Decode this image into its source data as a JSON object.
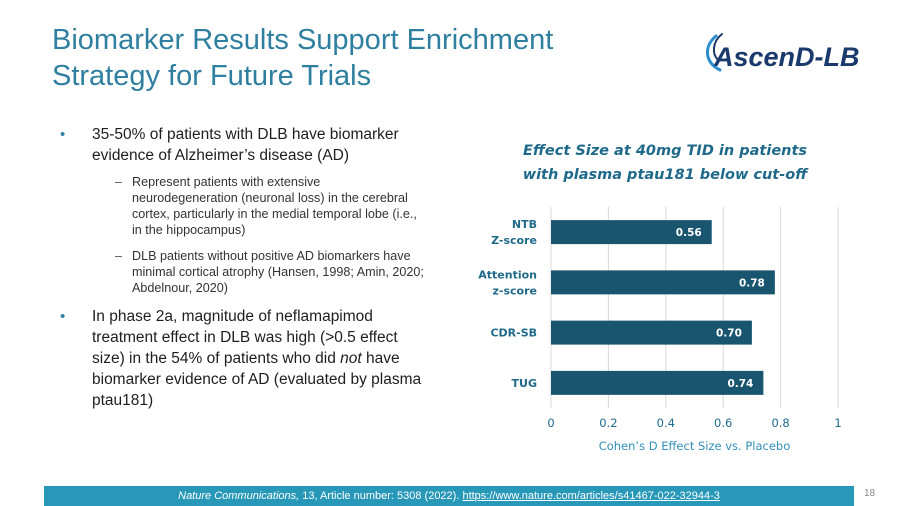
{
  "slide": {
    "title_line1": "Biomarker Results Support Enrichment",
    "title_line2": "Strategy for Future Trials",
    "logo_text": "AscenD-LB",
    "page_number": "18"
  },
  "bullets": [
    {
      "text": "35-50% of patients with DLB have biomarker evidence of Alzheimer’s disease (AD)",
      "subitems": [
        "Represent patients with extensive neurodegeneration (neuronal loss) in the cerebral cortex, particularly in the medial temporal lobe (i.e., in the hippocampus)",
        "DLB patients without positive AD biomarkers have minimal cortical atrophy (Hansen, 1998; Amin, 2020; Abdelnour, 2020)"
      ]
    },
    {
      "text_before": "In phase 2a, magnitude of neflamapimod treatment effect in DLB was high (>0.5 effect size) in the 54% of patients who did ",
      "text_italic": "not",
      "text_after": " have biomarker evidence of AD (evaluated by plasma ptau181)"
    }
  ],
  "chart_data": {
    "type": "bar",
    "orientation": "horizontal",
    "title": "Effect Size at 40mg TID in patients with plasma ptau181 below cut-off",
    "title_line1": "Effect Size at 40mg TID in patients",
    "title_line2": "with plasma ptau181 below cut-off",
    "categories": [
      [
        "NTB",
        "Z-score"
      ],
      [
        "Attention",
        "z-score"
      ],
      [
        "CDR-SB"
      ],
      [
        "TUG"
      ]
    ],
    "values": [
      0.56,
      0.78,
      0.7,
      0.74
    ],
    "value_labels": [
      "0.56",
      "0.78",
      "0.70",
      "0.74"
    ],
    "xlim": [
      0,
      1
    ],
    "xticks": [
      "0",
      "0.2",
      "0.4",
      "0.6",
      "0.8",
      "1"
    ],
    "xlabel": "Cohen’s D Effect Size vs. Placebo",
    "bar_color": "#1a5570",
    "grid": true
  },
  "footer": {
    "journal": "Nature Communications,",
    "citation": " 13, Article number: 5308 (2022). ",
    "link": "https://www.nature.com/articles/s41467-022-32944-3"
  },
  "colors": {
    "title": "#2f7fa0",
    "footer_bg": "#2898b8",
    "logo_dark": "#1a3a6e",
    "logo_accent": "#2a8fd0"
  }
}
